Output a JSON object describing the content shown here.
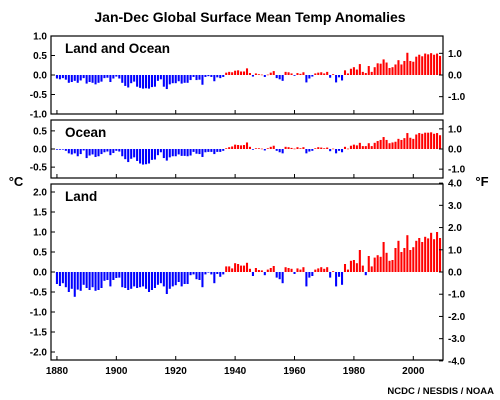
{
  "chart_data": {
    "type": "bar",
    "title": "Jan-Dec Global Surface Mean Temp Anomalies",
    "left_unit": "°C",
    "right_unit": "°F",
    "credit": "NCDC / NESDIS / NOAA",
    "x_ticks": [
      "1880",
      "1900",
      "1920",
      "1940",
      "1960",
      "1980",
      "2000"
    ],
    "xlim": [
      1878,
      2010
    ],
    "colors": {
      "positive": "#ff0000",
      "negative": "#0000ff",
      "frame": "#000000"
    },
    "panels": [
      {
        "name": "Land and Ocean",
        "ylim": [
          -1.0,
          1.0
        ],
        "left_ticks": [
          "1.0",
          "0.5",
          "0.0",
          "-0.5",
          "-1.0"
        ],
        "right_ticks": [
          "1.0",
          "0.0",
          "-1.0"
        ],
        "series": [
          {
            "name": "Land and Ocean",
            "x": [],
            "values": [
              -0.09,
              -0.11,
              -0.08,
              -0.12,
              -0.2,
              -0.18,
              -0.15,
              -0.2,
              -0.14,
              -0.08,
              -0.22,
              -0.18,
              -0.2,
              -0.24,
              -0.2,
              -0.17,
              -0.08,
              -0.07,
              -0.18,
              -0.09,
              -0.04,
              -0.09,
              -0.2,
              -0.28,
              -0.32,
              -0.21,
              -0.17,
              -0.3,
              -0.33,
              -0.35,
              -0.34,
              -0.35,
              -0.31,
              -0.3,
              -0.15,
              -0.11,
              -0.3,
              -0.36,
              -0.24,
              -0.21,
              -0.21,
              -0.16,
              -0.22,
              -0.2,
              -0.2,
              -0.13,
              -0.05,
              -0.13,
              -0.12,
              -0.25,
              -0.05,
              -0.03,
              -0.05,
              -0.16,
              -0.06,
              -0.08,
              -0.05,
              0.06,
              0.08,
              0.07,
              0.11,
              0.12,
              0.09,
              0.09,
              0.17,
              0.05,
              -0.04,
              0.04,
              0.02,
              0.01,
              -0.05,
              0.01,
              0.06,
              0.1,
              -0.08,
              -0.11,
              -0.15,
              0.08,
              0.07,
              0.04,
              -0.02,
              0.05,
              0.03,
              0.07,
              -0.19,
              -0.09,
              -0.04,
              0.04,
              0.06,
              0.07,
              0.04,
              0.08,
              -0.07,
              0.02,
              -0.19,
              -0.06,
              -0.14,
              0.12,
              0.04,
              0.16,
              0.2,
              0.14,
              0.28,
              0.08,
              0.05,
              0.23,
              0.08,
              0.2,
              0.3,
              0.29,
              0.4,
              0.32,
              0.18,
              0.2,
              0.27,
              0.38,
              0.27,
              0.36,
              0.57,
              0.36,
              0.34,
              0.47,
              0.52,
              0.48,
              0.55,
              0.53,
              0.56,
              0.52,
              0.55,
              0.49
            ]
          }
        ]
      },
      {
        "name": "Ocean",
        "ylim": [
          -0.8,
          0.8
        ],
        "left_ticks": [
          "0.5",
          "0.0",
          "-0.5"
        ],
        "right_ticks": [
          "1.0",
          "0.0",
          "-1.0"
        ],
        "series": [
          {
            "name": "Ocean",
            "x": [],
            "values": [
              -0.02,
              -0.02,
              -0.01,
              -0.05,
              -0.12,
              -0.15,
              -0.12,
              -0.2,
              -0.14,
              -0.04,
              -0.25,
              -0.18,
              -0.15,
              -0.22,
              -0.2,
              -0.14,
              -0.09,
              -0.07,
              -0.17,
              -0.11,
              -0.05,
              -0.07,
              -0.2,
              -0.28,
              -0.36,
              -0.27,
              -0.23,
              -0.33,
              -0.4,
              -0.43,
              -0.42,
              -0.4,
              -0.3,
              -0.29,
              -0.17,
              -0.09,
              -0.25,
              -0.32,
              -0.23,
              -0.2,
              -0.2,
              -0.15,
              -0.19,
              -0.19,
              -0.2,
              -0.18,
              -0.08,
              -0.13,
              -0.14,
              -0.22,
              -0.09,
              -0.08,
              -0.08,
              -0.14,
              -0.08,
              -0.08,
              -0.05,
              0.02,
              0.05,
              0.07,
              0.12,
              0.11,
              0.1,
              0.11,
              0.18,
              0.06,
              -0.02,
              0.02,
              0.02,
              0.01,
              -0.04,
              0.02,
              0.06,
              0.09,
              -0.05,
              -0.09,
              -0.12,
              0.06,
              0.05,
              0.03,
              0.01,
              0.05,
              0.02,
              0.05,
              -0.12,
              -0.07,
              -0.05,
              0.02,
              0.05,
              0.04,
              0.02,
              0.04,
              -0.06,
              0.01,
              -0.12,
              -0.05,
              -0.09,
              0.06,
              0.01,
              0.09,
              0.12,
              0.1,
              0.17,
              0.08,
              0.08,
              0.16,
              0.08,
              0.17,
              0.22,
              0.25,
              0.33,
              0.25,
              0.16,
              0.18,
              0.2,
              0.28,
              0.25,
              0.3,
              0.44,
              0.31,
              0.28,
              0.4,
              0.44,
              0.42,
              0.45,
              0.45,
              0.46,
              0.42,
              0.44,
              0.38
            ]
          }
        ]
      },
      {
        "name": "Land",
        "ylim": [
          -2.2,
          2.2
        ],
        "left_ticks": [
          "2.0",
          "1.5",
          "1.0",
          "0.5",
          "0.0",
          "-0.5",
          "-1.0",
          "-1.5",
          "-2.0"
        ],
        "right_ticks": [
          "4.0",
          "3.0",
          "2.0",
          "1.0",
          "0.0",
          "-1.0",
          "-2.0",
          "-3.0",
          "-4.0"
        ],
        "series": [
          {
            "name": "Land",
            "x": [],
            "values": [
              -0.3,
              -0.35,
              -0.28,
              -0.38,
              -0.5,
              -0.42,
              -0.62,
              -0.44,
              -0.47,
              -0.32,
              -0.4,
              -0.45,
              -0.38,
              -0.47,
              -0.45,
              -0.4,
              -0.22,
              -0.2,
              -0.36,
              -0.2,
              -0.15,
              -0.14,
              -0.38,
              -0.4,
              -0.45,
              -0.42,
              -0.36,
              -0.4,
              -0.38,
              -0.36,
              -0.42,
              -0.5,
              -0.45,
              -0.4,
              -0.32,
              -0.28,
              -0.36,
              -0.55,
              -0.42,
              -0.36,
              -0.33,
              -0.25,
              -0.36,
              -0.3,
              -0.3,
              -0.08,
              -0.06,
              -0.18,
              -0.2,
              -0.38,
              -0.06,
              -0.01,
              -0.06,
              -0.28,
              -0.05,
              -0.12,
              -0.06,
              0.14,
              0.14,
              0.09,
              0.22,
              0.2,
              0.16,
              0.16,
              0.23,
              0.08,
              -0.1,
              0.1,
              0.05,
              0.04,
              -0.08,
              0.06,
              0.1,
              0.15,
              -0.14,
              -0.18,
              -0.28,
              0.12,
              0.1,
              0.08,
              -0.05,
              0.09,
              0.06,
              0.12,
              -0.36,
              -0.14,
              -0.1,
              0.06,
              0.09,
              0.12,
              0.08,
              0.12,
              -0.14,
              0.02,
              -0.36,
              -0.12,
              -0.32,
              0.2,
              0.06,
              0.28,
              0.3,
              0.22,
              0.55,
              0.16,
              -0.08,
              0.4,
              0.14,
              0.36,
              0.42,
              0.38,
              0.75,
              0.48,
              0.28,
              0.3,
              0.6,
              0.78,
              0.5,
              0.6,
              0.92,
              0.55,
              0.62,
              0.78,
              0.85,
              0.75,
              0.88,
              0.84,
              0.98,
              0.82,
              1.0,
              0.85
            ]
          }
        ]
      }
    ]
  }
}
